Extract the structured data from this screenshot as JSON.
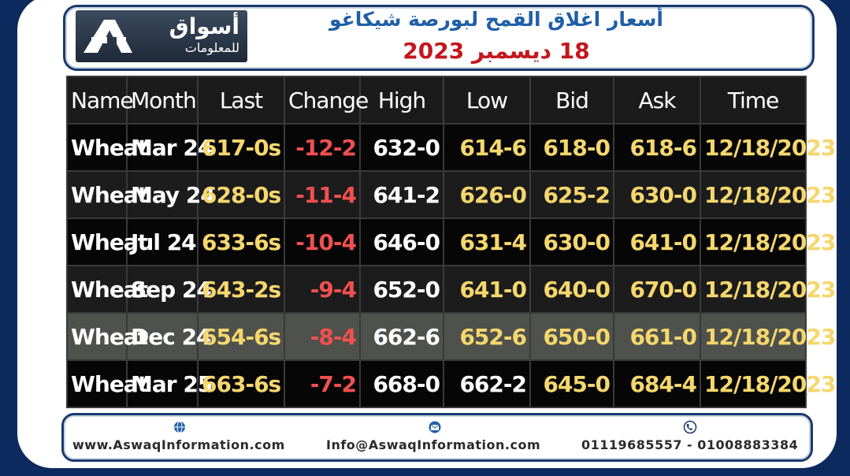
{
  "header": {
    "logo_text_line1": "أسواق",
    "logo_text_line2": "للمعلومات",
    "title": "أسعار اغلاق القمح لبورصة شيكاغو",
    "date": "18 ديسمبر 2023"
  },
  "table": {
    "columns": [
      "Name",
      "Month",
      "Last",
      "Change",
      "High",
      "Low",
      "Bid",
      "Ask",
      "Time"
    ],
    "rows": [
      {
        "name": "Wheat",
        "month": "Mar 24",
        "last": "617-0s",
        "change": "-12-2",
        "high": "632-0",
        "low": "614-6",
        "bid": "618-0",
        "ask": "618-6",
        "time": "12/18/2023"
      },
      {
        "name": "Wheat",
        "month": "May 24",
        "last": "628-0s",
        "change": "-11-4",
        "high": "641-2",
        "low": "626-0",
        "bid": "625-2",
        "ask": "630-0",
        "time": "12/18/2023"
      },
      {
        "name": "Wheat",
        "month": "Jul 24",
        "last": "633-6s",
        "change": "-10-4",
        "high": "646-0",
        "low": "631-4",
        "bid": "630-0",
        "ask": "641-0",
        "time": "12/18/2023"
      },
      {
        "name": "Wheat",
        "month": "Sep 24",
        "last": "643-2s",
        "change": "-9-4",
        "high": "652-0",
        "low": "641-0",
        "bid": "640-0",
        "ask": "670-0",
        "time": "12/18/2023"
      },
      {
        "name": "Wheat",
        "month": "Dec 24",
        "last": "654-6s",
        "change": "-8-4",
        "high": "662-6",
        "low": "652-6",
        "bid": "650-0",
        "ask": "661-0",
        "time": "12/18/2023"
      },
      {
        "name": "Wheat",
        "month": "Mar 25",
        "last": "663-6s",
        "change": "-7-2",
        "high": "668-0",
        "low": "662-2",
        "bid": "645-0",
        "ask": "684-4",
        "time": "12/18/2023"
      }
    ]
  },
  "footer": {
    "website": "www.AswaqInformation.com",
    "email": "Info@AswaqInformation.com",
    "phones": "01119685557 - 01008883384",
    "website_icon": "globe-icon",
    "email_icon": "envelope-icon",
    "phone_icon": "phone-icon"
  },
  "colors": {
    "title_blue": "#1f5fa8",
    "date_red": "#c4161c",
    "negative_red": "#f05050",
    "value_yellow": "#f5d76e",
    "frame_navy": "#1a3a6e"
  }
}
